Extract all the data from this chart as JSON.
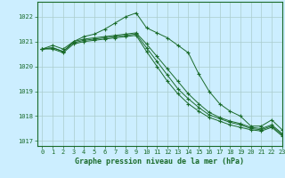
{
  "title": "Graphe pression niveau de la mer (hPa)",
  "background_color": "#cceeff",
  "grid_color": "#aacccc",
  "line_color": "#1a6b2a",
  "xlim": [
    -0.5,
    23
  ],
  "ylim": [
    1016.8,
    1022.6
  ],
  "yticks": [
    1017,
    1018,
    1019,
    1020,
    1021,
    1022
  ],
  "xticks": [
    0,
    1,
    2,
    3,
    4,
    5,
    6,
    7,
    8,
    9,
    10,
    11,
    12,
    13,
    14,
    15,
    16,
    17,
    18,
    19,
    20,
    21,
    22,
    23
  ],
  "series": [
    [
      1020.7,
      1020.85,
      1020.7,
      1021.0,
      1021.2,
      1021.3,
      1021.5,
      1021.75,
      1022.0,
      1022.15,
      1021.55,
      1021.35,
      1021.15,
      1020.85,
      1020.55,
      1019.7,
      1019.0,
      1018.5,
      1018.2,
      1018.0,
      1017.6,
      1017.6,
      1017.85,
      1017.45
    ],
    [
      1020.7,
      1020.75,
      1020.6,
      1021.0,
      1021.1,
      1021.15,
      1021.2,
      1021.25,
      1021.3,
      1021.35,
      1020.9,
      1020.4,
      1019.9,
      1019.4,
      1018.9,
      1018.5,
      1018.15,
      1017.95,
      1017.8,
      1017.7,
      1017.55,
      1017.5,
      1017.65,
      1017.3
    ],
    [
      1020.7,
      1020.75,
      1020.6,
      1020.95,
      1021.05,
      1021.1,
      1021.15,
      1021.2,
      1021.25,
      1021.3,
      1020.75,
      1020.2,
      1019.65,
      1019.1,
      1018.7,
      1018.35,
      1018.05,
      1017.9,
      1017.75,
      1017.65,
      1017.5,
      1017.45,
      1017.6,
      1017.25
    ],
    [
      1020.7,
      1020.7,
      1020.55,
      1020.9,
      1021.0,
      1021.05,
      1021.1,
      1021.15,
      1021.2,
      1021.25,
      1020.6,
      1020.0,
      1019.4,
      1018.9,
      1018.5,
      1018.2,
      1017.95,
      1017.8,
      1017.65,
      1017.55,
      1017.45,
      1017.4,
      1017.55,
      1017.2
    ]
  ]
}
